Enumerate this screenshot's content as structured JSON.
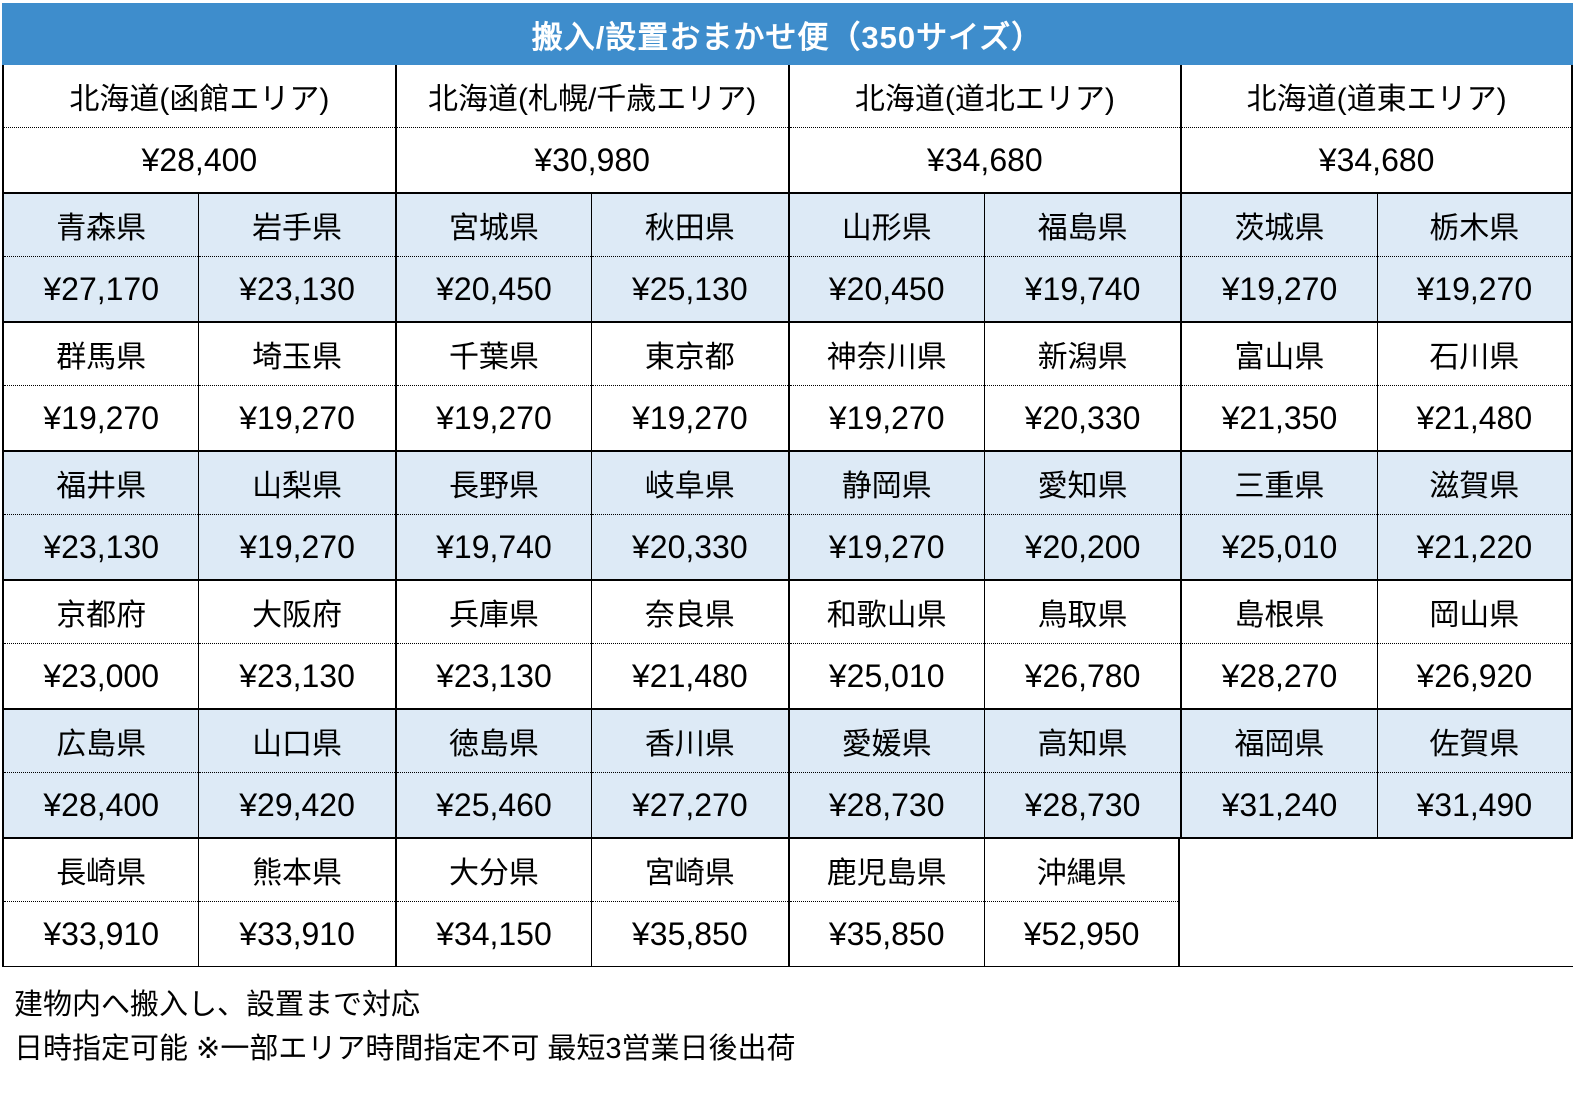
{
  "title": "搬入/設置おまかせ便（350サイズ）",
  "colors": {
    "header_bg": "#3E8DCC",
    "band_alt_bg": "#DDEAF6",
    "band_bg": "#FFFFFF",
    "border": "#000000",
    "title_text": "#FFFFFF"
  },
  "table": {
    "bands": [
      {
        "shaded": false,
        "span": 2,
        "cells": [
          {
            "name": "北海道(函館エリア)",
            "price": "¥28,400"
          },
          {
            "name": "北海道(札幌/千歳エリア)",
            "price": "¥30,980"
          },
          {
            "name": "北海道(道北エリア)",
            "price": "¥34,680"
          },
          {
            "name": "北海道(道東エリア)",
            "price": "¥34,680"
          }
        ]
      },
      {
        "shaded": true,
        "span": 1,
        "cells": [
          {
            "name": "青森県",
            "price": "¥27,170"
          },
          {
            "name": "岩手県",
            "price": "¥23,130"
          },
          {
            "name": "宮城県",
            "price": "¥20,450"
          },
          {
            "name": "秋田県",
            "price": "¥25,130"
          },
          {
            "name": "山形県",
            "price": "¥20,450"
          },
          {
            "name": "福島県",
            "price": "¥19,740"
          },
          {
            "name": "茨城県",
            "price": "¥19,270"
          },
          {
            "name": "栃木県",
            "price": "¥19,270"
          }
        ]
      },
      {
        "shaded": false,
        "span": 1,
        "cells": [
          {
            "name": "群馬県",
            "price": "¥19,270"
          },
          {
            "name": "埼玉県",
            "price": "¥19,270"
          },
          {
            "name": "千葉県",
            "price": "¥19,270"
          },
          {
            "name": "東京都",
            "price": "¥19,270"
          },
          {
            "name": "神奈川県",
            "price": "¥19,270"
          },
          {
            "name": "新潟県",
            "price": "¥20,330"
          },
          {
            "name": "富山県",
            "price": "¥21,350"
          },
          {
            "name": "石川県",
            "price": "¥21,480"
          }
        ]
      },
      {
        "shaded": true,
        "span": 1,
        "cells": [
          {
            "name": "福井県",
            "price": "¥23,130"
          },
          {
            "name": "山梨県",
            "price": "¥19,270"
          },
          {
            "name": "長野県",
            "price": "¥19,740"
          },
          {
            "name": "岐阜県",
            "price": "¥20,330"
          },
          {
            "name": "静岡県",
            "price": "¥19,270"
          },
          {
            "name": "愛知県",
            "price": "¥20,200"
          },
          {
            "name": "三重県",
            "price": "¥25,010"
          },
          {
            "name": "滋賀県",
            "price": "¥21,220"
          }
        ]
      },
      {
        "shaded": false,
        "span": 1,
        "cells": [
          {
            "name": "京都府",
            "price": "¥23,000"
          },
          {
            "name": "大阪府",
            "price": "¥23,130"
          },
          {
            "name": "兵庫県",
            "price": "¥23,130"
          },
          {
            "name": "奈良県",
            "price": "¥21,480"
          },
          {
            "name": "和歌山県",
            "price": "¥25,010"
          },
          {
            "name": "鳥取県",
            "price": "¥26,780"
          },
          {
            "name": "島根県",
            "price": "¥28,270"
          },
          {
            "name": "岡山県",
            "price": "¥26,920"
          }
        ]
      },
      {
        "shaded": true,
        "span": 1,
        "cells": [
          {
            "name": "広島県",
            "price": "¥28,400"
          },
          {
            "name": "山口県",
            "price": "¥29,420"
          },
          {
            "name": "徳島県",
            "price": "¥25,460"
          },
          {
            "name": "香川県",
            "price": "¥27,270"
          },
          {
            "name": "愛媛県",
            "price": "¥28,730"
          },
          {
            "name": "高知県",
            "price": "¥28,730"
          },
          {
            "name": "福岡県",
            "price": "¥31,240"
          },
          {
            "name": "佐賀県",
            "price": "¥31,490"
          }
        ]
      },
      {
        "shaded": false,
        "span": 1,
        "cells": [
          {
            "name": "長崎県",
            "price": "¥33,910"
          },
          {
            "name": "熊本県",
            "price": "¥33,910"
          },
          {
            "name": "大分県",
            "price": "¥34,150"
          },
          {
            "name": "宮崎県",
            "price": "¥35,850"
          },
          {
            "name": "鹿児島県",
            "price": "¥35,850"
          },
          {
            "name": "沖縄県",
            "price": "¥52,950"
          }
        ]
      }
    ]
  },
  "notes": [
    "建物内へ搬入し、設置まで対応",
    "日時指定可能 ※一部エリア時間指定不可 最短3営業日後出荷"
  ]
}
